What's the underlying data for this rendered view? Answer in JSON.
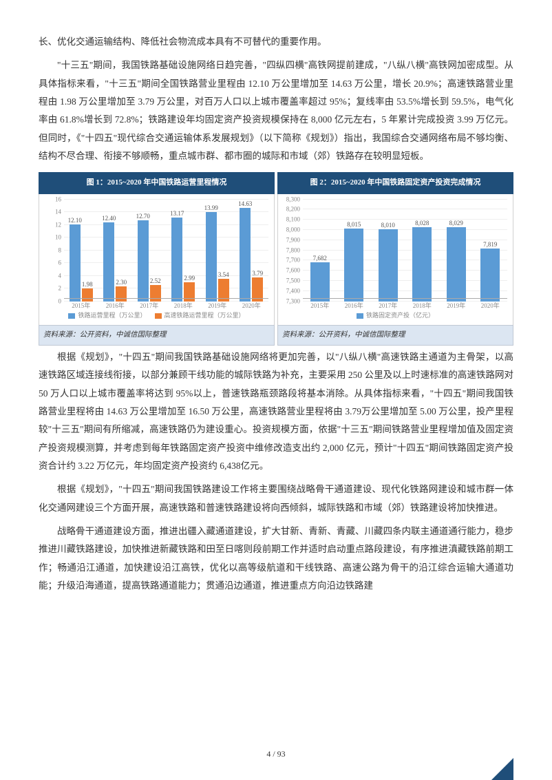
{
  "para1": "长、优化交通运输结构、降低社会物流成本具有不可替代的重要作用。",
  "para2": "\"十三五\"期间，我国铁路基础设施网络日趋完善，\"四纵四横\"高铁网提前建成，\"八纵八横\"高铁网加密成型。从具体指标来看，\"十三五\"期间全国铁路营业里程由 12.10 万公里增加至 14.63 万公里，增长 20.9%；高速铁路营业里程由 1.98 万公里增加至 3.79 万公里，对百万人口以上城市覆盖率超过 95%；复线率由 53.5%增长到 59.5%，电气化率由 61.8%增长到 72.8%；铁路建设年均固定资产投资规模保持在 8,000 亿元左右，5 年累计完成投资 3.99 万亿元。但同时，《\"十四五\"现代综合交通运输体系发展规划》（以下简称《规划》）指出，我国综合交通网络布局不够均衡、结构不尽合理、衔接不够顺畅，重点城市群、都市圈的城际和市域（郊）铁路存在较明显短板。",
  "para3": "根据《规划》，\"十四五\"期间我国铁路基础设施网络将更加完善，以\"八纵八横\"高速铁路主通道为主骨架，以高速铁路区域连接线衔接，以部分兼顾干线功能的城际铁路为补充，主要采用 250 公里及以上时速标准的高速铁路网对 50 万人口以上城市覆盖率将达到 95%以上，普速铁路瓶颈路段将基本消除。从具体指标来看，\"十四五\"期间我国铁路营业里程将由 14.63 万公里增加至 16.50 万公里，高速铁路营业里程将由 3.79万公里增加至 5.00 万公里，投产里程较\"十三五\"期间有所缩减，高速铁路仍为建设重心。投资规模方面，依据\"十三五\"期间铁路营业里程增加值及固定资产投资规模测算，并考虑到每年铁路固定资产投资中维修改造支出约 2,000 亿元，预计\"十四五\"期间铁路固定资产投资合计约 3.22 万亿元，年均固定资产投资约 6,438亿元。",
  "para4": "根据《规划》，\"十四五\"期间我国铁路建设工作将主要围绕战略骨干通道建设、现代化铁路网建设和城市群一体化交通网建设三个方面开展，高速铁路和普速铁路建设将向西倾斜，城际铁路和市域（郊）铁路建设将加快推进。",
  "para5": "战略骨干通道建设方面，推进出疆入藏通道建设，扩大甘新、青新、青藏、川藏四条内联主通道通行能力，稳步推进川藏铁路建设，加快推进新藏铁路和田至日喀则段前期工作并适时启动重点路段建设，有序推进滇藏铁路前期工作；畅通沿江通道，加快建设沿江高铁，优化以高等级航道和干线铁路、高速公路为骨干的沿江综合运输大通道功能；升级沿海通道，提高铁路通道能力；贯通沿边通道，推进重点方向沿边铁路建",
  "chart1": {
    "title": "图 1：2015~2020 年中国铁路运营里程情况",
    "source": "资料来源：公开资料，中诚信国际整理",
    "categories": [
      "2015年",
      "2016年",
      "2017年",
      "2018年",
      "2019年",
      "2020年"
    ],
    "series1": {
      "name": "铁路运营里程（万公里）",
      "color": "#5b9bd5",
      "values": [
        12.1,
        12.4,
        12.7,
        13.17,
        13.99,
        14.63
      ]
    },
    "series2": {
      "name": "高速铁路运营里程（万公里）",
      "color": "#ed7d31",
      "values": [
        1.98,
        2.3,
        2.52,
        2.99,
        3.54,
        3.79
      ]
    },
    "ymin": 0,
    "ymax": 16,
    "ystep": 2,
    "grid_color": "#eeeeee",
    "label_fontsize": 9
  },
  "chart2": {
    "title": "图 2：2015~2020 年中国铁路固定资产投资完成情况",
    "source": "资料来源：公开资料，中诚信国际整理",
    "categories": [
      "2015年",
      "2016年",
      "2017年",
      "2018年",
      "2019年",
      "2020年"
    ],
    "series1": {
      "name": "铁路固定资产投（亿元）",
      "color": "#5b9bd5",
      "values": [
        7682,
        8015,
        8010,
        8028,
        8029,
        7819
      ]
    },
    "ymin": 7300,
    "ymax": 8300,
    "ystep": 100,
    "grid_color": "#eeeeee",
    "label_fontsize": 9
  },
  "footer": "4 / 93"
}
